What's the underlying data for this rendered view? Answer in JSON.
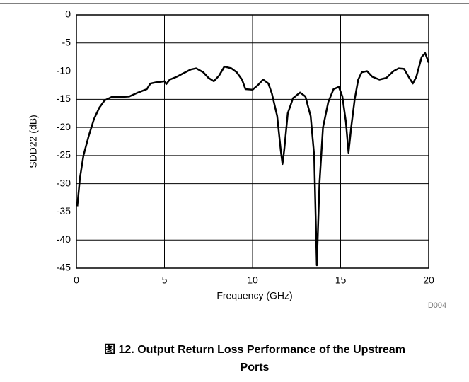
{
  "chart_data": {
    "type": "line",
    "title": "图 12. Output Return Loss Performance of the Upstream Ports",
    "xlabel": "Frequency (GHz)",
    "ylabel": "SDD22 (dB)",
    "annotation": "D004",
    "xlim": [
      0,
      20
    ],
    "ylim": [
      -45,
      0
    ],
    "xticks": [
      0,
      5,
      10,
      15,
      20
    ],
    "yticks": [
      0,
      -5,
      -10,
      -15,
      -20,
      -25,
      -30,
      -35,
      -40,
      -45
    ],
    "grid": true,
    "series": [
      {
        "color": "#000000",
        "x": [
          0.05,
          0.2,
          0.4,
          0.7,
          1,
          1.3,
          1.6,
          2,
          2.5,
          3,
          3.5,
          4,
          4.2,
          4.5,
          5,
          5.1,
          5.3,
          5.7,
          6,
          6.5,
          6.8,
          7.2,
          7.5,
          7.8,
          8.1,
          8.4,
          8.8,
          9.1,
          9.4,
          9.6,
          10,
          10.3,
          10.6,
          10.9,
          11.1,
          11.4,
          11.6,
          11.7,
          11.8,
          12,
          12.3,
          12.7,
          13,
          13.3,
          13.5,
          13.65,
          13.8,
          14,
          14.3,
          14.6,
          14.9,
          15.1,
          15.3,
          15.45,
          15.6,
          15.8,
          16,
          16.2,
          16.5,
          16.8,
          17.2,
          17.6,
          18,
          18.3,
          18.6,
          18.9,
          19.1,
          19.3,
          19.6,
          19.8,
          20
        ],
        "values": [
          -34,
          -29,
          -25,
          -21.5,
          -18.5,
          -16.5,
          -15.2,
          -14.6,
          -14.6,
          -14.5,
          -13.8,
          -13.2,
          -12.2,
          -12,
          -11.8,
          -12.3,
          -11.5,
          -11,
          -10.5,
          -9.7,
          -9.5,
          -10.2,
          -11.2,
          -11.8,
          -10.8,
          -9.2,
          -9.5,
          -10.2,
          -11.5,
          -13.2,
          -13.3,
          -12.5,
          -11.5,
          -12.2,
          -14,
          -18,
          -24,
          -26.5,
          -24,
          -17.5,
          -14.8,
          -13.8,
          -14.5,
          -18,
          -25,
          -44.5,
          -30,
          -20,
          -15.5,
          -13.2,
          -12.8,
          -14.5,
          -19,
          -24.5,
          -20,
          -15,
          -11.5,
          -10.2,
          -10,
          -11,
          -11.5,
          -11.2,
          -10,
          -9.5,
          -9.6,
          -11.2,
          -12.2,
          -11,
          -7.5,
          -6.8,
          -8.5
        ]
      }
    ]
  }
}
